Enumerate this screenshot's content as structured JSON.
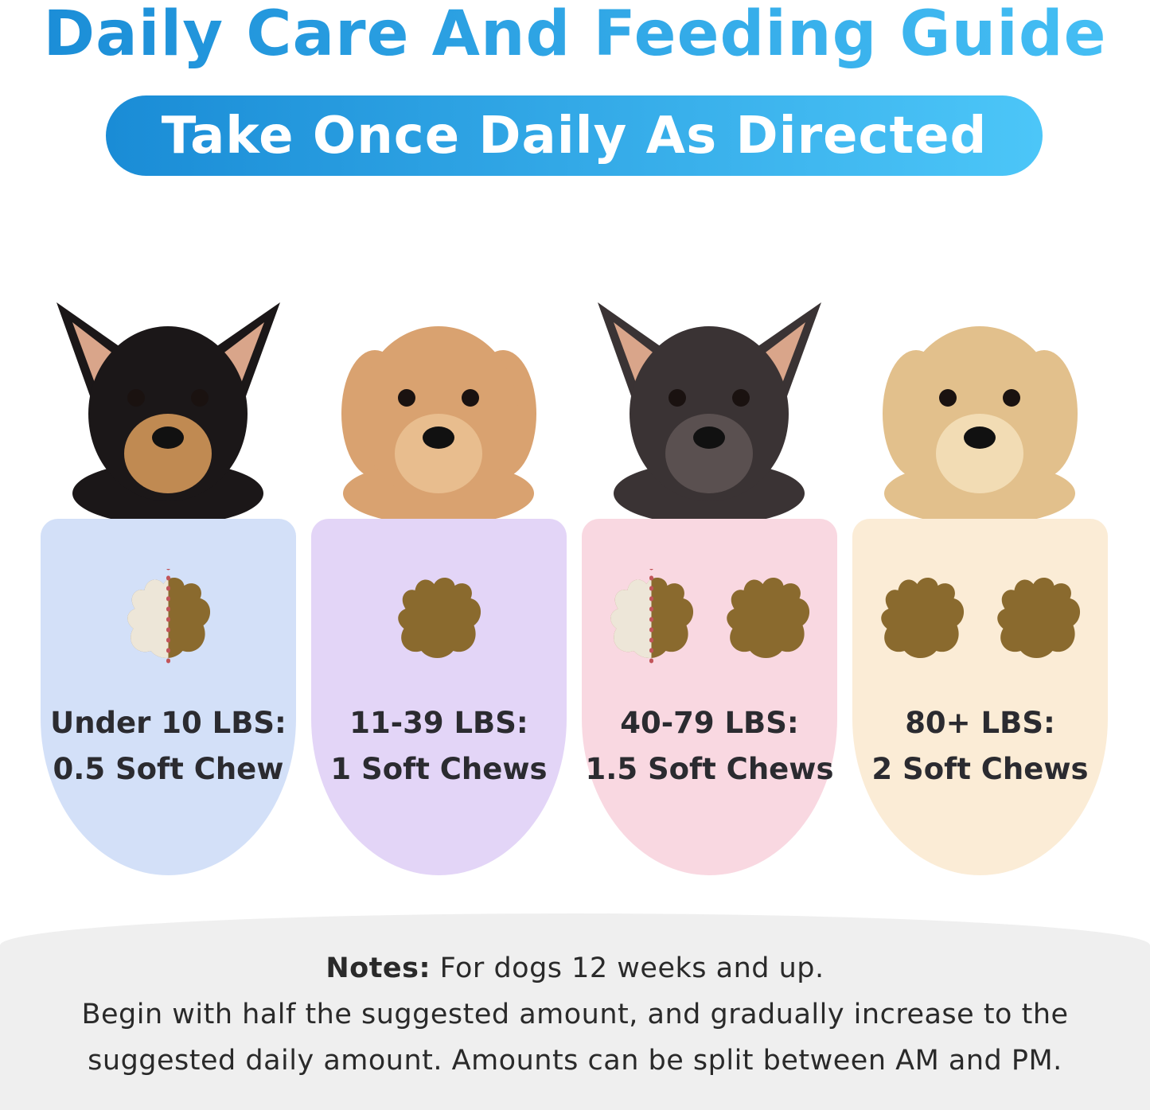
{
  "title": "Daily Care And Feeding Guide",
  "subtitle": "Take Once Daily As Directed",
  "colors": {
    "title_start": "#1a8cd6",
    "title_end": "#46c0f5",
    "card_colors": [
      "#d3e0f8",
      "#e3d5f7",
      "#f9d8e1",
      "#fbecd6"
    ],
    "chew": "#8a6a2e",
    "chew_half": "#ede6d8",
    "cut_line": "#c2555a"
  },
  "cards": [
    {
      "dog": "chihuahua",
      "weight": "Under 10 LBS:",
      "dose": "0.5 Soft Chew",
      "dose_value": 0.5
    },
    {
      "dog": "poodle",
      "weight": "11-39 LBS:",
      "dose": "1 Soft Chews",
      "dose_value": 1
    },
    {
      "dog": "french-bulldog",
      "weight": "40-79 LBS:",
      "dose": "1.5 Soft Chews",
      "dose_value": 1.5
    },
    {
      "dog": "golden-retriever",
      "weight": "80+ LBS:",
      "dose": "2 Soft Chews",
      "dose_value": 2
    }
  ],
  "notes": {
    "label": "Notes:",
    "line1": " For dogs 12 weeks and up.",
    "line2": "Begin with half the suggested amount, and gradually increase to the",
    "line3": "suggested daily amount. Amounts can be split between AM and PM."
  }
}
